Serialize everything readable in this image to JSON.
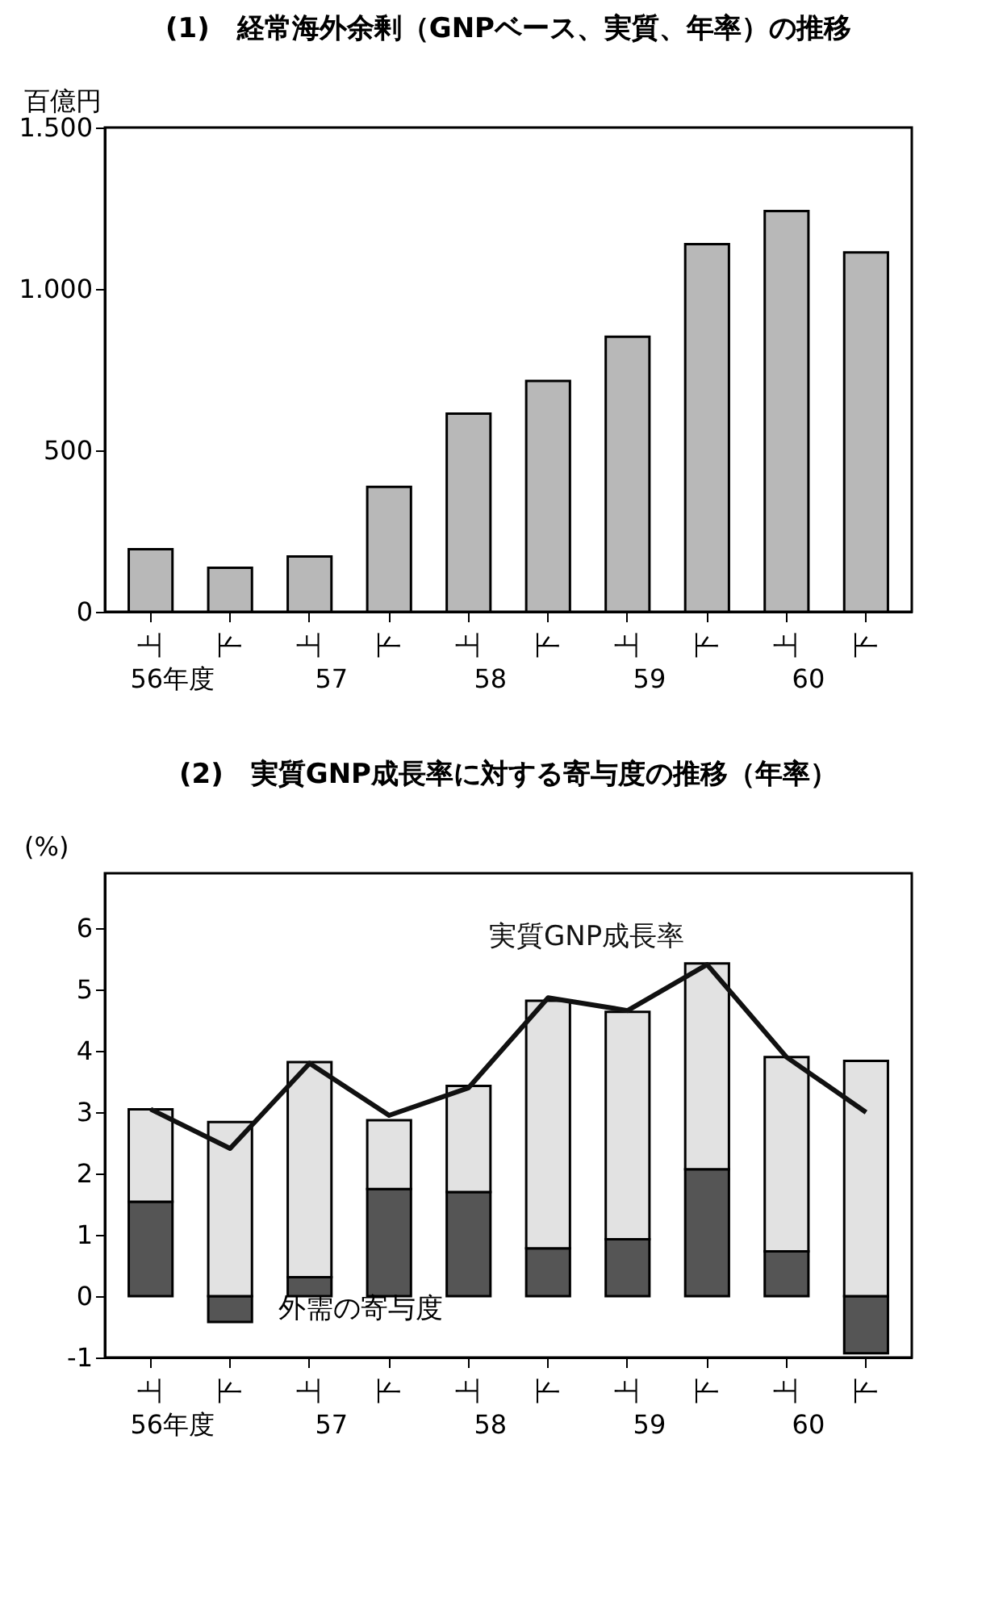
{
  "chart_data": [
    {
      "type": "bar",
      "title": "(1)　経常海外余剰（GNPベース、実質、年率）の推移",
      "ylabel": "百億円",
      "categories": [
        "上",
        "下",
        "上",
        "下",
        "上",
        "下",
        "上",
        "下",
        "上",
        "下"
      ],
      "values": [
        194,
        136,
        171,
        387,
        614,
        715,
        852,
        1139,
        1241,
        1113
      ],
      "color": "#b8b8b8",
      "ylim": [
        0,
        1500
      ],
      "yticks": [
        0,
        500,
        {
          "value": 1000,
          "label": "1.000"
        },
        {
          "value": 1500,
          "label": "1.500"
        }
      ],
      "annotations": [
        "56年度",
        "57",
        "58",
        "59",
        "60"
      ],
      "grid": false
    },
    {
      "type": "bar",
      "title": "(2)　実質GNP成長率に対する寄与度の推移（年率）",
      "ylabel": "(%)",
      "categories": [
        "上",
        "下",
        "上",
        "下",
        "上",
        "下",
        "上",
        "下",
        "上",
        "下"
      ],
      "stacked": true,
      "series": [
        {
          "name": "外需の寄与度",
          "color": "#555555",
          "values": [
            1.54,
            -0.42,
            0.31,
            1.75,
            1.7,
            0.78,
            0.93,
            2.07,
            0.73,
            -0.93
          ]
        },
        {
          "color": "#e2e2e2",
          "values": [
            1.51,
            2.84,
            3.51,
            1.12,
            1.73,
            4.04,
            3.71,
            3.36,
            3.17,
            3.84
          ]
        },
        {
          "name": "実質GNP成長率",
          "type": "line",
          "color": "#111111",
          "values": [
            3.05,
            2.41,
            3.8,
            2.95,
            3.4,
            4.87,
            4.66,
            5.41,
            3.9,
            3.0
          ]
        }
      ],
      "ylim": [
        -1,
        6.9
      ],
      "yticks": [
        -1,
        0,
        1,
        2,
        3,
        4,
        5,
        6
      ],
      "annotations": [
        "56年度",
        "57",
        "58",
        "59",
        "60"
      ],
      "grid": false
    }
  ]
}
